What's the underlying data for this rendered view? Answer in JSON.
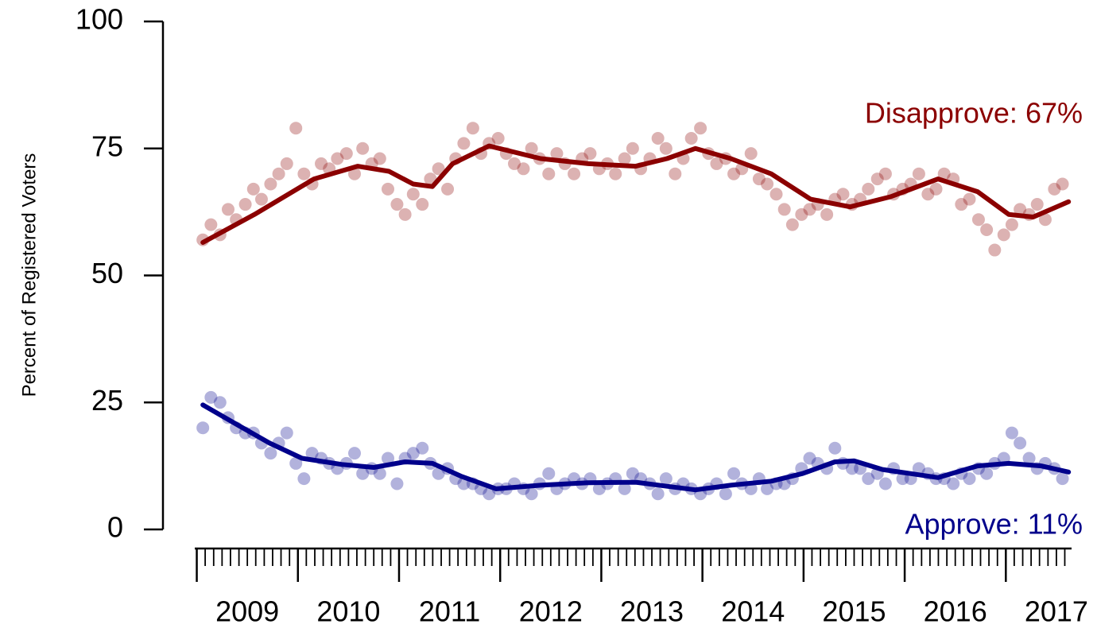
{
  "chart_data": {
    "type": "scatter",
    "ylabel": "Percent of Registered Voters",
    "ylim": [
      0,
      100
    ],
    "yticks": [
      0,
      25,
      50,
      75,
      100
    ],
    "xlim": [
      2008.98,
      2017.65
    ],
    "xticks": [
      {
        "value": 2009.5,
        "label": "2009"
      },
      {
        "value": 2010.5,
        "label": "2010"
      },
      {
        "value": 2011.5,
        "label": "2011"
      },
      {
        "value": 2012.5,
        "label": "2012"
      },
      {
        "value": 2013.5,
        "label": "2013"
      },
      {
        "value": 2014.5,
        "label": "2014"
      },
      {
        "value": 2015.5,
        "label": "2015"
      },
      {
        "value": 2016.5,
        "label": "2016"
      },
      {
        "value": 2017.5,
        "label": "2017"
      }
    ],
    "x_minor_ticks": [
      2009,
      2009.083,
      2009.167,
      2009.25,
      2009.333,
      2009.417,
      2009.5,
      2009.583,
      2009.667,
      2009.75,
      2009.833,
      2009.917,
      2010,
      2010.083,
      2010.167,
      2010.25,
      2010.333,
      2010.417,
      2010.5,
      2010.583,
      2010.667,
      2010.75,
      2010.833,
      2010.917,
      2011,
      2011.083,
      2011.167,
      2011.25,
      2011.333,
      2011.417,
      2011.5,
      2011.583,
      2011.667,
      2011.75,
      2011.833,
      2011.917,
      2012,
      2012.083,
      2012.167,
      2012.25,
      2012.333,
      2012.417,
      2012.5,
      2012.583,
      2012.667,
      2012.75,
      2012.833,
      2012.917,
      2013,
      2013.083,
      2013.167,
      2013.25,
      2013.333,
      2013.417,
      2013.5,
      2013.583,
      2013.667,
      2013.75,
      2013.833,
      2013.917,
      2014,
      2014.083,
      2014.167,
      2014.25,
      2014.333,
      2014.417,
      2014.5,
      2014.583,
      2014.667,
      2014.75,
      2014.833,
      2014.917,
      2015,
      2015.083,
      2015.167,
      2015.25,
      2015.333,
      2015.417,
      2015.5,
      2015.583,
      2015.667,
      2015.75,
      2015.833,
      2015.917,
      2016,
      2016.083,
      2016.167,
      2016.25,
      2016.333,
      2016.417,
      2016.5,
      2016.583,
      2016.667,
      2016.75,
      2016.833,
      2016.917,
      2017,
      2017.083,
      2017.167,
      2017.25,
      2017.333,
      2017.417,
      2017.5,
      2017.583
    ],
    "x": [
      2009.06,
      2009.14,
      2009.23,
      2009.31,
      2009.39,
      2009.48,
      2009.56,
      2009.64,
      2009.73,
      2009.81,
      2009.89,
      2009.98,
      2010.06,
      2010.14,
      2010.23,
      2010.31,
      2010.39,
      2010.48,
      2010.56,
      2010.64,
      2010.73,
      2010.81,
      2010.89,
      2010.98,
      2011.06,
      2011.14,
      2011.23,
      2011.31,
      2011.39,
      2011.48,
      2011.56,
      2011.64,
      2011.73,
      2011.81,
      2011.89,
      2011.98,
      2012.06,
      2012.14,
      2012.23,
      2012.31,
      2012.39,
      2012.48,
      2012.56,
      2012.64,
      2012.73,
      2012.81,
      2012.89,
      2012.98,
      2013.06,
      2013.14,
      2013.23,
      2013.31,
      2013.39,
      2013.48,
      2013.56,
      2013.64,
      2013.73,
      2013.81,
      2013.89,
      2013.98,
      2014.06,
      2014.14,
      2014.23,
      2014.31,
      2014.39,
      2014.48,
      2014.56,
      2014.64,
      2014.73,
      2014.81,
      2014.89,
      2014.98,
      2015.06,
      2015.14,
      2015.23,
      2015.31,
      2015.39,
      2015.48,
      2015.56,
      2015.64,
      2015.73,
      2015.81,
      2015.89,
      2015.98,
      2016.06,
      2016.14,
      2016.23,
      2016.31,
      2016.39,
      2016.48,
      2016.56,
      2016.64,
      2016.73,
      2016.81,
      2016.89,
      2016.98,
      2017.06,
      2017.14,
      2017.23,
      2017.31,
      2017.39,
      2017.48,
      2017.56
    ],
    "series": [
      {
        "name": "Disapprove: 67%",
        "color": "#8b0000",
        "values": [
          57,
          60,
          58,
          63,
          61,
          64,
          67,
          65,
          68,
          70,
          72,
          79,
          70,
          68,
          72,
          71,
          73,
          74,
          70,
          75,
          72,
          73,
          67,
          64,
          62,
          66,
          64,
          69,
          71,
          67,
          73,
          76,
          79,
          74,
          76,
          77,
          74,
          72,
          71,
          75,
          73,
          70,
          74,
          72,
          70,
          73,
          74,
          71,
          72,
          70,
          73,
          75,
          71,
          73,
          77,
          75,
          70,
          73,
          77,
          79,
          74,
          72,
          73,
          70,
          71,
          74,
          69,
          68,
          66,
          63,
          60,
          62,
          63,
          64,
          62,
          65,
          66,
          64,
          65,
          67,
          69,
          70,
          66,
          67,
          68,
          70,
          66,
          67,
          70,
          69,
          64,
          65,
          61,
          59,
          55,
          58,
          60,
          63,
          62,
          64,
          61,
          67,
          68
        ],
        "trend": {
          "x": [
            2009.06,
            2009.57,
            2010.16,
            2010.59,
            2010.9,
            2011.14,
            2011.33,
            2011.53,
            2011.89,
            2012.4,
            2012.87,
            2013.34,
            2013.65,
            2013.93,
            2014.28,
            2014.68,
            2015.07,
            2015.46,
            2015.86,
            2016.33,
            2016.72,
            2017.03,
            2017.27,
            2017.62
          ],
          "values": [
            56.5,
            62,
            69,
            71.5,
            70.5,
            68,
            67.5,
            72,
            75.5,
            73,
            72,
            71.5,
            73,
            75,
            73,
            70,
            65,
            63.5,
            65.5,
            69,
            66.5,
            62,
            61.5,
            64.5
          ]
        }
      },
      {
        "name": "Approve: 11%",
        "color": "#00008b",
        "values": [
          20,
          26,
          25,
          22,
          20,
          19,
          19,
          17,
          15,
          17,
          19,
          13,
          10,
          15,
          14,
          13,
          12,
          13,
          15,
          11,
          12,
          11,
          14,
          9,
          14,
          15,
          16,
          13,
          11,
          12,
          10,
          9,
          9,
          8,
          7,
          8,
          8,
          9,
          8,
          7,
          9,
          11,
          8,
          9,
          10,
          9,
          10,
          8,
          9,
          10,
          8,
          11,
          10,
          9,
          7,
          10,
          8,
          9,
          8,
          7,
          8,
          9,
          7,
          11,
          9,
          8,
          10,
          8,
          9,
          9,
          10,
          12,
          14,
          13,
          12,
          16,
          13,
          12,
          12,
          10,
          11,
          9,
          12,
          10,
          10,
          12,
          11,
          10,
          10,
          9,
          11,
          10,
          12,
          11,
          13,
          14,
          19,
          17,
          14,
          12,
          13,
          12,
          10
        ],
        "trend": {
          "x": [
            2009.06,
            2009.41,
            2009.72,
            2010.04,
            2010.43,
            2010.75,
            2011.06,
            2011.33,
            2011.61,
            2011.96,
            2012.4,
            2012.87,
            2013.34,
            2013.65,
            2013.93,
            2014.28,
            2014.68,
            2014.99,
            2015.31,
            2015.5,
            2015.78,
            2016.33,
            2016.72,
            2017.03,
            2017.35,
            2017.62
          ],
          "values": [
            24.5,
            20.5,
            17,
            14,
            12.8,
            12.2,
            13.3,
            13,
            10.5,
            8,
            8.7,
            9.2,
            9.3,
            8.5,
            7.8,
            8.7,
            9.5,
            11,
            13.3,
            13.5,
            11.8,
            10.2,
            12.5,
            13,
            12.5,
            11.3
          ]
        }
      }
    ]
  }
}
